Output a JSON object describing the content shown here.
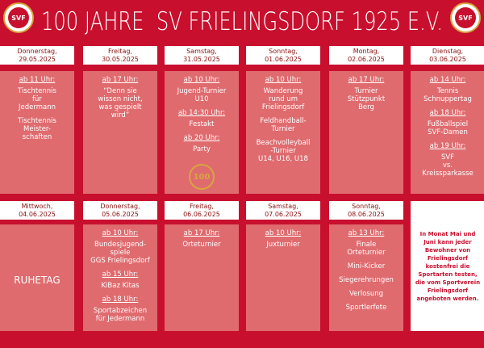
{
  "header": {
    "title": "100 JAHRE  SV FRIELINGSDORF 1925 E.V.",
    "logo_left": "SVF",
    "logo_right": "SVF"
  },
  "days": [
    {
      "weekday": "Donnerstag,",
      "date": "29.05.2025",
      "items": [
        {
          "time": "ab 11 Uhr:",
          "text": "Tischtennis\nfür\nJedermann"
        },
        {
          "text": "Tischtennis\nMeister-\nschaften"
        }
      ]
    },
    {
      "weekday": "Freitag,",
      "date": "30.05.2025",
      "items": [
        {
          "time": "ab 17 Uhr:",
          "text": "“Denn sie\nwissen nicht,\nwas gespielt\nwird”"
        }
      ]
    },
    {
      "weekday": "Samstag,",
      "date": "31.05.2025",
      "items": [
        {
          "time": "ab 10 Uhr:",
          "text": "Jugend-Turnier\nU10"
        },
        {
          "time": "ab 14:30 Uhr:",
          "text": "Festakt"
        },
        {
          "time": "ab 20 Uhr:",
          "text": "Party"
        }
      ],
      "badge": "100"
    },
    {
      "weekday": "Sonntag,",
      "date": "01.06.2025",
      "items": [
        {
          "time": "ab 10 Uhr:",
          "text": "Wanderung\nrund um\nFrielingsdorf"
        },
        {
          "text": "Feldhandball-\nTurnier"
        },
        {
          "text": "Beachvolleyball\n-Turnier\nU14, U16, U18"
        }
      ]
    },
    {
      "weekday": "Montag,",
      "date": "02.06.2025",
      "items": [
        {
          "time": "ab 17 Uhr:",
          "text": "Turnier\nStützpunkt\nBerg"
        }
      ]
    },
    {
      "weekday": "Dienstag,",
      "date": "03.06.2025",
      "items": [
        {
          "time": "ab 14 Uhr:",
          "text": "Tennis\nSchnuppertag"
        },
        {
          "time": "ab 18 Uhr:",
          "text": "Fußballspiel\nSVF-Damen"
        },
        {
          "time": "ab 19 Uhr:",
          "text": "SVF\nvs.\nKreissparkasse"
        }
      ]
    },
    {
      "weekday": "Mittwoch,",
      "date": "04.06.2025",
      "items": [
        {
          "text": "RUHETAG"
        }
      ]
    },
    {
      "weekday": "Donnerstag,",
      "date": "05.06.2025",
      "items": [
        {
          "time": "ab 10 Uhr:",
          "text": "Bundesjugend-\nspiele\nGGS Frielingsdorf"
        },
        {
          "time": "ab 15 Uhr:",
          "text": "KiBaz Kitas"
        },
        {
          "time": "ab 18 Uhr:",
          "text": "Sportabzeichen\nfür Jedermann"
        }
      ]
    },
    {
      "weekday": "Freitag,",
      "date": "06.06.2025",
      "items": [
        {
          "time": "ab 17 Uhr:",
          "text": "Orteturnier"
        }
      ]
    },
    {
      "weekday": "Samstag,",
      "date": "07.06.2025",
      "items": [
        {
          "time": "ab 10 Uhr:",
          "text": "Juxturnier"
        }
      ]
    },
    {
      "weekday": "Sonntag,",
      "date": "08.06.2025",
      "items": [
        {
          "time": "ab 13 Uhr:",
          "text": "Finale\nOrteturnier"
        },
        {
          "text": "Mini-Kicker"
        },
        {
          "text": "Siegerehrungen"
        },
        {
          "text": "Verlosung"
        },
        {
          "text": "Sportlerfete"
        }
      ]
    }
  ],
  "info": "In Monat Mai und\nJuni kann jeder\nBewohner von\nFrielingsdorf\nkostenfrei die\nSportarten testen,\ndie vom Sportverein\nFrielingsdorf\nangeboten werden."
}
